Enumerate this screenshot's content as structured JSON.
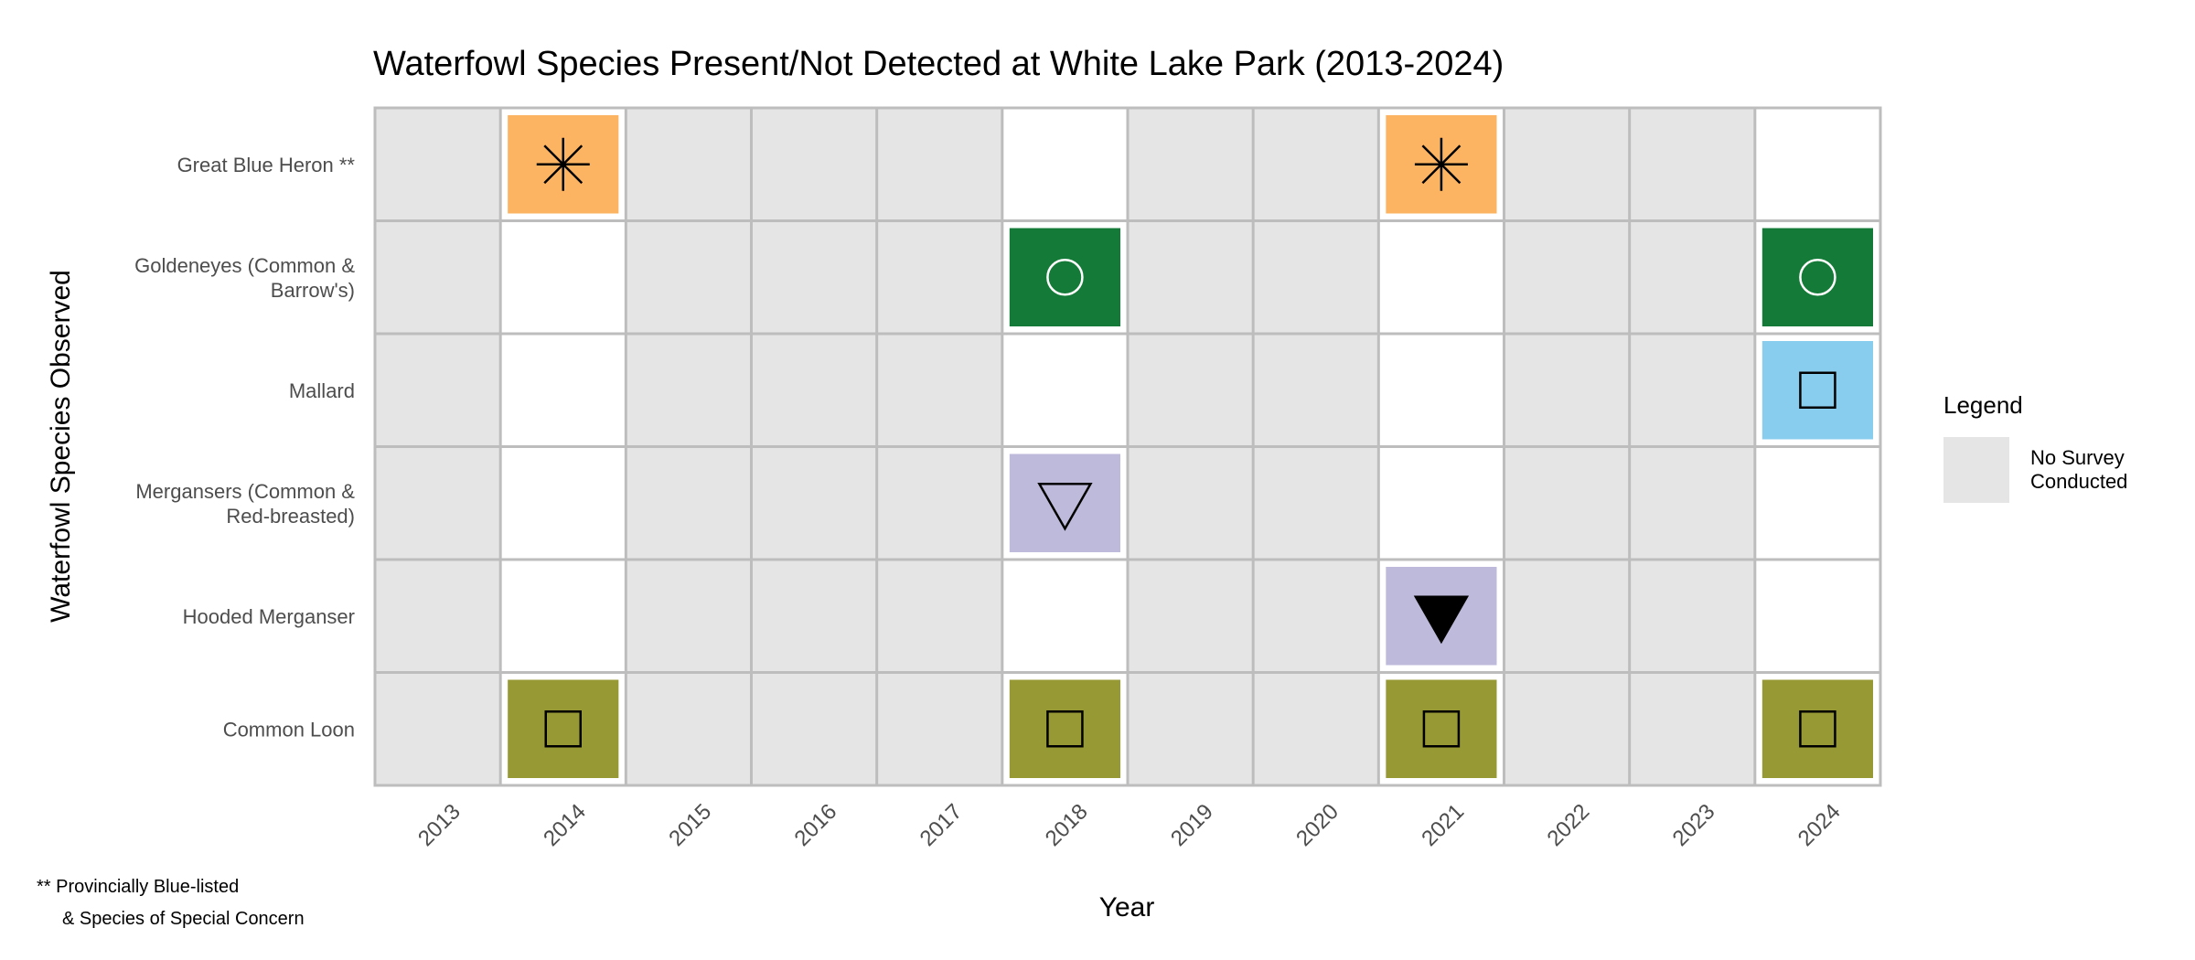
{
  "chart_data": {
    "type": "heatmap",
    "title": "Waterfowl Species Present/Not Detected at White Lake Park (2013-2024)",
    "xlabel": "Year",
    "ylabel": "Waterfowl Species Observed",
    "years": [
      "2013",
      "2014",
      "2015",
      "2016",
      "2017",
      "2018",
      "2019",
      "2020",
      "2021",
      "2022",
      "2023",
      "2024"
    ],
    "no_survey_years": [
      "2013",
      "2015",
      "2016",
      "2017",
      "2019",
      "2020",
      "2022",
      "2023"
    ],
    "species": [
      {
        "label": "Great Blue Heron **",
        "lines": [
          "Great Blue Heron **"
        ],
        "color": "#fdb462",
        "symbol": "asterisk",
        "symbol_color": "#000000",
        "present": [
          "2014",
          "2021"
        ]
      },
      {
        "label": "Goldeneyes (Common & Barrow's)",
        "lines": [
          "Goldeneyes (Common &",
          "Barrow's)"
        ],
        "color": "#137b37",
        "symbol": "circle",
        "symbol_color": "#ffffff",
        "present": [
          "2018",
          "2024"
        ]
      },
      {
        "label": "Mallard",
        "lines": [
          "Mallard"
        ],
        "color": "#89cdee",
        "symbol": "square",
        "symbol_color": "#000000",
        "present": [
          "2024"
        ]
      },
      {
        "label": "Mergansers (Common & Red-breasted)",
        "lines": [
          "Mergansers (Common &",
          "Red-breasted)"
        ],
        "color": "#bebadb",
        "symbol": "triangle-down-open",
        "symbol_color": "#000000",
        "present": [
          "2018"
        ]
      },
      {
        "label": "Hooded Merganser",
        "lines": [
          "Hooded Merganser"
        ],
        "color": "#bebadb",
        "symbol": "triangle-down-filled",
        "symbol_color": "#000000",
        "present": [
          "2021"
        ]
      },
      {
        "label": "Common Loon",
        "lines": [
          "Common Loon"
        ],
        "color": "#979934",
        "symbol": "square",
        "symbol_color": "#000000",
        "present": [
          "2014",
          "2018",
          "2021",
          "2024"
        ]
      }
    ],
    "no_survey_color": "#e5e5e5",
    "grid_color": "#bdbdbd",
    "legend": {
      "title": "Legend",
      "lines": [
        "No Survey",
        "Conducted"
      ],
      "placement": "right"
    }
  },
  "footnote": {
    "lines": [
      "** Provincially Blue-listed",
      "& Species of Special Concern"
    ]
  }
}
